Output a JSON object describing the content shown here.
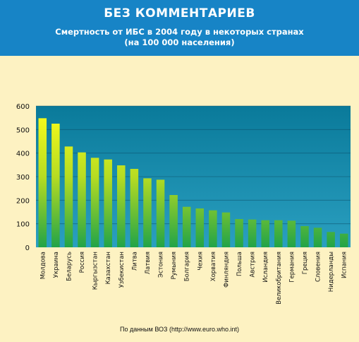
{
  "header": {
    "title": "БЕЗ КОММЕНТАРИЕВ",
    "subtitle_line1": "Смертность от ИБС в 2004 году в некоторых странах",
    "subtitle_line2": "(на 100 000 населения)"
  },
  "footer": {
    "source": "По данным ВОЗ (http://www.euro.who.int)"
  },
  "chart_data": {
    "type": "bar",
    "categories": [
      "Молдова",
      "Украина",
      "Беларусь",
      "Россия",
      "Кыргызстан",
      "Казахстан",
      "Узбекистан",
      "Литва",
      "Латвия",
      "Эстония",
      "Румыния",
      "Болгария",
      "Чехия",
      "Хорватия",
      "Финляндия",
      "Польша",
      "Австрия",
      "Исландия",
      "Великобритания",
      "Германия",
      "Греция",
      "Словения",
      "Нидерланды",
      "Испания"
    ],
    "values": [
      548,
      525,
      428,
      403,
      380,
      373,
      348,
      333,
      293,
      287,
      222,
      172,
      165,
      157,
      148,
      120,
      118,
      115,
      115,
      113,
      90,
      83,
      65,
      58
    ],
    "ylim": [
      0,
      600
    ],
    "yticks": [
      0,
      100,
      200,
      300,
      400,
      500,
      600
    ],
    "grid": true,
    "colors": {
      "plot_top": "#0a7a9a",
      "plot_bottom": "#2a9fc0",
      "bar_top": "#ffff1a",
      "bar_bottom": "#22a348"
    }
  }
}
